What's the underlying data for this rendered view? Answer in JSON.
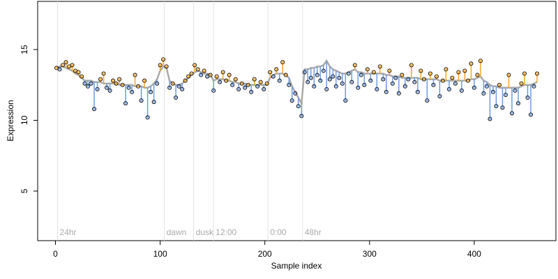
{
  "chart_data": {
    "type": "residual",
    "xlabel": "Sample index",
    "ylabel": "Expression",
    "xlim": [
      -17,
      478
    ],
    "ylim": [
      1.5,
      18.4
    ],
    "xticks": [
      0,
      100,
      200,
      300,
      400
    ],
    "yticks": [
      5,
      10,
      15
    ],
    "above_color": "#f5a623",
    "below_color": "#6f9be0",
    "trend_color": "#aaaaaa",
    "annotations": [
      {
        "x": 2,
        "label": "24hr"
      },
      {
        "x": 104,
        "label": "dawn"
      },
      {
        "x": 132,
        "label": "dusk"
      },
      {
        "x": 151,
        "label": "12:00"
      },
      {
        "x": 203,
        "label": "0:00"
      },
      {
        "x": 236,
        "label": "48hr"
      }
    ],
    "x": [
      1,
      4,
      7,
      10,
      13,
      16,
      19,
      22,
      25,
      28,
      31,
      34,
      37,
      40,
      43,
      46,
      49,
      52,
      55,
      58,
      61,
      64,
      67,
      70,
      73,
      76,
      79,
      82,
      85,
      88,
      91,
      94,
      97,
      100,
      103,
      106,
      109,
      112,
      115,
      118,
      121,
      124,
      127,
      130,
      133,
      136,
      139,
      142,
      145,
      148,
      151,
      154,
      157,
      160,
      163,
      166,
      169,
      172,
      175,
      178,
      181,
      184,
      187,
      190,
      193,
      196,
      199,
      202,
      205,
      208,
      211,
      214,
      217,
      220,
      223,
      226,
      229,
      232,
      235,
      238,
      241,
      244,
      247,
      250,
      253,
      256,
      259,
      262,
      265,
      268,
      271,
      274,
      277,
      280,
      283,
      286,
      289,
      292,
      295,
      298,
      301,
      304,
      307,
      310,
      313,
      316,
      319,
      322,
      325,
      328,
      331,
      334,
      337,
      340,
      343,
      346,
      349,
      352,
      355,
      358,
      361,
      364,
      367,
      370,
      373,
      376,
      379,
      382,
      385,
      388,
      391,
      394,
      397,
      400,
      403,
      406,
      409,
      412,
      415,
      418,
      421,
      424,
      427,
      430,
      433,
      436,
      439,
      442,
      445,
      448,
      451,
      454,
      457,
      460
    ],
    "values": [
      13.7,
      13.6,
      13.9,
      14.1,
      13.8,
      13.9,
      13.5,
      13.4,
      13.1,
      12.6,
      12.4,
      12.6,
      10.8,
      12.2,
      12.9,
      13.3,
      12.3,
      12.1,
      12.8,
      12.6,
      12.9,
      12.5,
      11.2,
      12.3,
      12.0,
      13.2,
      12.4,
      11.4,
      12.8,
      10.2,
      12.0,
      11.3,
      12.6,
      13.9,
      14.3,
      13.8,
      12.3,
      12.6,
      11.6,
      12.4,
      12.2,
      12.8,
      13.1,
      13.3,
      13.9,
      13.6,
      13.2,
      13.5,
      13.1,
      13.2,
      12.1,
      13.1,
      12.7,
      13.4,
      12.8,
      13.2,
      12.5,
      12.9,
      12.2,
      12.6,
      12.3,
      12.5,
      12.0,
      12.9,
      12.4,
      12.7,
      12.2,
      12.6,
      13.4,
      13.1,
      13.6,
      12.8,
      14.1,
      13.2,
      12.5,
      11.4,
      11.9,
      11.0,
      10.3,
      13.4,
      12.7,
      13.0,
      12.4,
      13.2,
      12.8,
      13.5,
      12.2,
      12.9,
      13.1,
      12.4,
      13.0,
      12.6,
      11.4,
      13.3,
      12.7,
      13.9,
      12.3,
      13.2,
      12.5,
      13.6,
      12.8,
      13.4,
      12.2,
      13.8,
      12.9,
      12.0,
      13.5,
      12.6,
      13.0,
      11.9,
      13.2,
      12.4,
      12.9,
      13.9,
      12.7,
      12.0,
      13.5,
      12.9,
      11.4,
      13.3,
      12.5,
      13.1,
      11.7,
      12.8,
      13.6,
      12.2,
      13.0,
      12.6,
      13.4,
      12.1,
      13.5,
      12.8,
      14.0,
      12.3,
      13.2,
      14.2,
      11.9,
      12.4,
      10.1,
      12.0,
      11.0,
      12.5,
      10.9,
      11.8,
      13.2,
      10.5,
      12.1,
      11.2,
      12.6,
      13.3,
      11.6,
      10.4,
      12.4,
      13.3
    ],
    "trend": [
      13.7,
      13.8,
      13.8,
      13.7,
      13.6,
      13.5,
      13.3,
      13.2,
      13.0,
      12.8,
      12.8,
      12.8,
      12.7,
      12.7,
      12.7,
      12.6,
      12.6,
      12.6,
      12.6,
      12.6,
      12.5,
      12.5,
      12.5,
      12.5,
      12.5,
      12.4,
      12.4,
      12.4,
      12.3,
      12.3,
      12.4,
      12.6,
      12.9,
      13.5,
      13.8,
      13.7,
      12.8,
      12.6,
      12.5,
      12.5,
      12.6,
      12.8,
      13.0,
      13.2,
      13.4,
      13.5,
      13.4,
      13.3,
      13.3,
      13.2,
      12.8,
      12.9,
      12.9,
      12.9,
      12.8,
      12.8,
      12.7,
      12.7,
      12.6,
      12.6,
      12.6,
      12.5,
      12.5,
      12.5,
      12.5,
      12.5,
      12.5,
      12.5,
      13.0,
      13.2,
      13.3,
      13.3,
      13.3,
      13.2,
      13.0,
      12.4,
      12.0,
      11.6,
      11.2,
      13.6,
      13.6,
      13.7,
      13.7,
      13.8,
      13.8,
      13.9,
      14.2,
      13.8,
      13.6,
      13.5,
      13.4,
      13.3,
      13.3,
      13.4,
      13.5,
      13.6,
      13.4,
      13.4,
      13.3,
      13.3,
      13.3,
      13.3,
      13.3,
      13.3,
      13.3,
      13.2,
      13.2,
      13.1,
      13.1,
      13.1,
      13.0,
      13.0,
      13.0,
      13.0,
      13.0,
      13.0,
      12.9,
      12.9,
      12.9,
      12.9,
      12.9,
      12.9,
      12.8,
      12.8,
      12.8,
      12.8,
      12.8,
      12.8,
      12.8,
      12.8,
      12.8,
      12.8,
      12.9,
      12.9,
      13.0,
      13.1,
      12.8,
      12.7,
      12.5,
      12.4,
      12.4,
      12.3,
      12.3,
      12.3,
      12.3,
      12.3,
      12.3,
      12.3,
      12.4,
      12.5,
      12.5,
      12.5,
      12.6,
      12.7
    ]
  }
}
